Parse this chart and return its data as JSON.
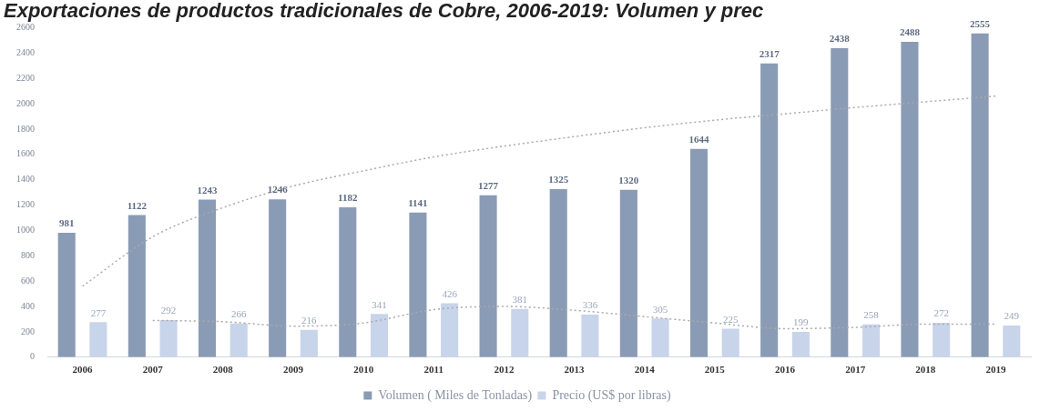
{
  "chart_data": {
    "type": "bar",
    "title": "Exportaciones de productos tradicionales de Cobre, 2006-2019: Volumen y prec",
    "categories": [
      "2006",
      "2007",
      "2008",
      "2009",
      "2010",
      "2011",
      "2012",
      "2013",
      "2014",
      "2015",
      "2016",
      "2017",
      "2018",
      "2019"
    ],
    "series": [
      {
        "name": "Volumen ( Miles de Tonladas)",
        "color": "#8a9bb5",
        "values": [
          981,
          1122,
          1243,
          1246,
          1182,
          1141,
          1277,
          1325,
          1320,
          1644,
          2317,
          2438,
          2488,
          2555
        ],
        "data_labels": true
      },
      {
        "name": "Precio (US$ por libras)",
        "color": "#c8d4ea",
        "values": [
          277,
          292,
          266,
          216,
          341,
          426,
          381,
          336,
          305,
          225,
          199,
          258,
          272,
          249
        ],
        "data_labels": true
      },
      {
        "type": "line",
        "color": "#aaaaaa",
        "line_style": "dotted",
        "marker": "none",
        "values": [
          560,
          950,
          1180,
          1350,
          1470,
          1580,
          1665,
          1740,
          1810,
          1870,
          1920,
          1970,
          2015,
          2060
        ]
      },
      {
        "type": "line",
        "color": "#aaaaaa",
        "line_style": "dotted",
        "marker": "none",
        "values": [
          null,
          290,
          280,
          245,
          270,
          375,
          400,
          370,
          320,
          270,
          225,
          235,
          260,
          260
        ]
      }
    ],
    "ylim": [
      0,
      2600
    ],
    "yticks": [
      0,
      200,
      400,
      600,
      800,
      1000,
      1200,
      1400,
      1600,
      1800,
      2000,
      2200,
      2400,
      2600
    ],
    "grid": false,
    "legend": "bottom"
  }
}
